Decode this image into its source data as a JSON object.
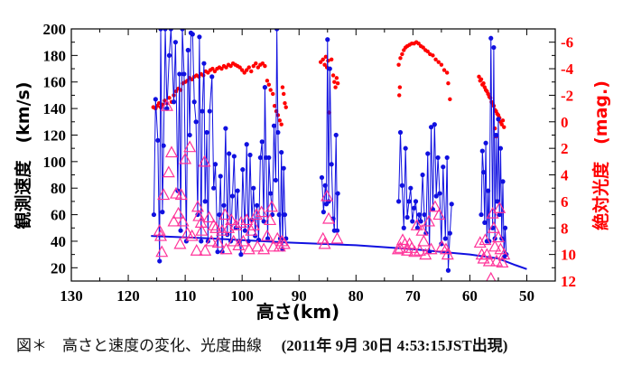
{
  "caption": {
    "main": "図＊　高さと速度の変化、光度曲線",
    "detail": "(2011年 9月 30日 4:53:15JST出現)"
  },
  "chart_data": {
    "type": "scatter",
    "xlabel": "高さ(km)",
    "ylabel": "観測速度　(km/s)",
    "y2label": "絶対光度　(mag.)",
    "xlim": [
      130,
      45
    ],
    "ylim": [
      10,
      200
    ],
    "y2lim": [
      -7,
      12
    ],
    "y2_inverted": true,
    "xticks": [
      130,
      120,
      110,
      100,
      90,
      80,
      70,
      60,
      50
    ],
    "yticks": [
      20,
      40,
      60,
      80,
      100,
      120,
      140,
      160,
      180,
      200
    ],
    "y2ticks": [
      -6,
      -4,
      -2,
      0,
      2,
      4,
      6,
      8,
      10,
      12
    ],
    "y2tick_labels": [
      "-6",
      "-4",
      "-2",
      "0",
      "2",
      "4",
      "6",
      "8",
      "10",
      "12"
    ],
    "grid": false,
    "colors": {
      "velocity": "#1010e0",
      "triangles": "#ff3399",
      "magnitude": "#ff0000",
      "y2axis": "#ff0000"
    },
    "velocity_segments": [
      [
        [
          115.5,
          60
        ],
        [
          115.2,
          147
        ],
        [
          114.8,
          116
        ],
        [
          114.5,
          25
        ],
        [
          114.3,
          200
        ],
        [
          114,
          62
        ],
        [
          113.8,
          112
        ],
        [
          113.5,
          200
        ],
        [
          113.2,
          140
        ],
        [
          112.8,
          180
        ],
        [
          112.5,
          200
        ],
        [
          112,
          145
        ],
        [
          111.7,
          190
        ],
        [
          111.3,
          78
        ],
        [
          111,
          166
        ],
        [
          110.8,
          48
        ],
        [
          110.5,
          200
        ],
        [
          110.2,
          166
        ],
        [
          109.8,
          40
        ],
        [
          109.5,
          184
        ],
        [
          109.2,
          120
        ],
        [
          109,
          197
        ],
        [
          108.7,
          196
        ],
        [
          108.4,
          145
        ],
        [
          108.1,
          130
        ],
        [
          107.8,
          60
        ],
        [
          107.5,
          194
        ],
        [
          107.2,
          40
        ],
        [
          107,
          138
        ],
        [
          106.7,
          174
        ],
        [
          106.5,
          70
        ],
        [
          106.2,
          122
        ],
        [
          106,
          40
        ],
        [
          105.7,
          138
        ],
        [
          105.3,
          164
        ],
        [
          105,
          80
        ],
        [
          104.7,
          98
        ],
        [
          104.3,
          32
        ],
        [
          104,
          60
        ],
        [
          103.8,
          89
        ],
        [
          103.5,
          32
        ],
        [
          103.2,
          67
        ],
        [
          102.9,
          125
        ],
        [
          102.6,
          45
        ],
        [
          102.3,
          106
        ],
        [
          102,
          40
        ],
        [
          101.7,
          74
        ],
        [
          101.4,
          104
        ],
        [
          101.1,
          50
        ],
        [
          100.8,
          78
        ],
        [
          100.5,
          40
        ],
        [
          100.2,
          30
        ],
        [
          99.9,
          94
        ],
        [
          99.5,
          48
        ],
        [
          99.2,
          113
        ],
        [
          98.9,
          40
        ],
        [
          98.6,
          105
        ],
        [
          98.3,
          56
        ],
        [
          98,
          80
        ],
        [
          97.7,
          44
        ],
        [
          97.4,
          67
        ],
        [
          97.1,
          41
        ],
        [
          96.8,
          103
        ],
        [
          96.5,
          115
        ],
        [
          96.2,
          55
        ],
        [
          96,
          156
        ],
        [
          95.8,
          103
        ],
        [
          95.5,
          42
        ],
        [
          95.3,
          103
        ],
        [
          95,
          76
        ],
        [
          94.7,
          60
        ],
        [
          94.4,
          127
        ],
        [
          94.1,
          86
        ],
        [
          93.9,
          200
        ],
        [
          93.7,
          122
        ],
        [
          93.5,
          60
        ],
        [
          93.3,
          42
        ],
        [
          93.1,
          107
        ],
        [
          92.9,
          34
        ],
        [
          92.7,
          95
        ],
        [
          92.5,
          60
        ],
        [
          92.3,
          42
        ]
      ],
      [
        [
          86,
          88
        ],
        [
          85.7,
          62
        ],
        [
          85.4,
          82
        ],
        [
          85.2,
          68
        ],
        [
          85,
          192
        ],
        [
          84.8,
          70
        ],
        [
          84.6,
          170
        ],
        [
          84.3,
          98
        ],
        [
          84,
          57
        ],
        [
          83.8,
          48
        ],
        [
          83.5,
          120
        ],
        [
          83.3,
          48
        ],
        [
          83.2,
          76
        ]
      ],
      [
        [
          72.5,
          70
        ],
        [
          72.2,
          122
        ],
        [
          71.9,
          82
        ],
        [
          71.6,
          50
        ],
        [
          71.3,
          110
        ],
        [
          71,
          58
        ],
        [
          70.7,
          70
        ],
        [
          70.4,
          80
        ],
        [
          70.1,
          55
        ],
        [
          69.8,
          65
        ],
        [
          69.5,
          70
        ],
        [
          69.2,
          50
        ],
        [
          68.9,
          60
        ],
        [
          68.6,
          55
        ],
        [
          68.3,
          90
        ],
        [
          68,
          60
        ],
        [
          67.7,
          46
        ],
        [
          67.4,
          106
        ],
        [
          67.1,
          32
        ],
        [
          66.8,
          126
        ],
        [
          66.5,
          64
        ],
        [
          66.2,
          128
        ],
        [
          65.9,
          74
        ],
        [
          65.6,
          103
        ],
        [
          65.3,
          76
        ],
        [
          65,
          38
        ],
        [
          64.7,
          96
        ],
        [
          64.3,
          42
        ],
        [
          64,
          103
        ],
        [
          63.8,
          18
        ],
        [
          63.5,
          46
        ],
        [
          63.2,
          68
        ]
      ],
      [
        [
          58,
          60
        ],
        [
          57.8,
          108
        ],
        [
          57.6,
          92
        ],
        [
          57.4,
          54
        ],
        [
          57.2,
          114
        ],
        [
          57,
          40
        ],
        [
          56.8,
          78
        ],
        [
          56.6,
          40
        ],
        [
          56.3,
          193
        ],
        [
          56,
          50
        ],
        [
          55.8,
          186
        ],
        [
          55.6,
          42
        ],
        [
          55.4,
          120
        ],
        [
          55.2,
          70
        ],
        [
          55,
          132
        ],
        [
          54.8,
          60
        ],
        [
          54.6,
          110
        ],
        [
          54.4,
          42
        ],
        [
          54.2,
          85
        ],
        [
          54,
          28
        ],
        [
          53.8,
          50
        ],
        [
          53.6,
          30
        ]
      ]
    ],
    "velocity_fit": [
      [
        116,
        44
      ],
      [
        105,
        42
      ],
      [
        92,
        39
      ],
      [
        80,
        37
      ],
      [
        70,
        34
      ],
      [
        60,
        30
      ],
      [
        55,
        27
      ],
      [
        52,
        22
      ],
      [
        50,
        19
      ]
    ],
    "triangle_points": [
      [
        114.5,
        48
      ],
      [
        114.3,
        44
      ],
      [
        114.1,
        32
      ],
      [
        113.8,
        75
      ],
      [
        113.2,
        142
      ],
      [
        112.9,
        92
      ],
      [
        112.4,
        107
      ],
      [
        112,
        55
      ],
      [
        111.6,
        76
      ],
      [
        111.2,
        61
      ],
      [
        110.7,
        75
      ],
      [
        110.9,
        38
      ],
      [
        110.4,
        55
      ],
      [
        110,
        102
      ],
      [
        109.6,
        46
      ],
      [
        109.2,
        111
      ],
      [
        108.8,
        44
      ],
      [
        108,
        33
      ],
      [
        107.8,
        66
      ],
      [
        107.6,
        59
      ],
      [
        107.2,
        54
      ],
      [
        107.1,
        48
      ],
      [
        106.6,
        100
      ],
      [
        106.5,
        33
      ],
      [
        105.8,
        58
      ],
      [
        105.4,
        40
      ],
      [
        105,
        52
      ],
      [
        104.6,
        50
      ],
      [
        104.2,
        39
      ],
      [
        103.5,
        48
      ],
      [
        103,
        60
      ],
      [
        102.8,
        34
      ],
      [
        102.4,
        50
      ],
      [
        101.9,
        56
      ],
      [
        101.5,
        40
      ],
      [
        101.1,
        52
      ],
      [
        100.6,
        37
      ],
      [
        100.2,
        54
      ],
      [
        99.8,
        40
      ],
      [
        99.2,
        56
      ],
      [
        98.8,
        34
      ],
      [
        98.4,
        48
      ],
      [
        98,
        52
      ],
      [
        97.5,
        60
      ],
      [
        97.3,
        36
      ],
      [
        96.6,
        62
      ],
      [
        96.2,
        34
      ],
      [
        95.6,
        44
      ],
      [
        95.1,
        56
      ],
      [
        94.8,
        66
      ],
      [
        94.5,
        36
      ],
      [
        93.8,
        42
      ],
      [
        93.4,
        36
      ],
      [
        93,
        40
      ],
      [
        92.6,
        38
      ],
      [
        85.8,
        42
      ],
      [
        85.5,
        38
      ],
      [
        85.1,
        74
      ],
      [
        84.8,
        57
      ],
      [
        83.3,
        42
      ],
      [
        72.6,
        34
      ],
      [
        72.2,
        35
      ],
      [
        71.8,
        41
      ],
      [
        71.4,
        38
      ],
      [
        71,
        33
      ],
      [
        70.6,
        38
      ],
      [
        70.2,
        35
      ],
      [
        69.7,
        32
      ],
      [
        69.3,
        52
      ],
      [
        68.8,
        33
      ],
      [
        68.4,
        48
      ],
      [
        68.1,
        40
      ],
      [
        67.8,
        30
      ],
      [
        67.2,
        55
      ],
      [
        66.8,
        34
      ],
      [
        66.1,
        66
      ],
      [
        65.4,
        60
      ],
      [
        64.9,
        36
      ],
      [
        64.2,
        34
      ],
      [
        63.9,
        30
      ],
      [
        58.2,
        39
      ],
      [
        57.9,
        30
      ],
      [
        57.6,
        27
      ],
      [
        57.3,
        41
      ],
      [
        57,
        30
      ],
      [
        56.6,
        25
      ],
      [
        56.3,
        12
      ],
      [
        56,
        61
      ],
      [
        55.8,
        50
      ],
      [
        55.6,
        36
      ],
      [
        55.3,
        25
      ],
      [
        55,
        43
      ],
      [
        54.8,
        65
      ],
      [
        54.6,
        34
      ],
      [
        54.3,
        24
      ],
      [
        54,
        30
      ]
    ],
    "magnitude_points": [
      [
        115.6,
        -1.1
      ],
      [
        115.2,
        -1.0
      ],
      [
        114.9,
        -1.2
      ],
      [
        114.6,
        -1.4
      ],
      [
        114.3,
        -1.1
      ],
      [
        114,
        -1.3
      ],
      [
        113.6,
        -1.6
      ],
      [
        113.2,
        -1.4
      ],
      [
        112.8,
        -1.8
      ],
      [
        112.4,
        -1.5
      ],
      [
        112,
        -2.0
      ],
      [
        111.6,
        -2.3
      ],
      [
        111.2,
        -2.5
      ],
      [
        110.8,
        -2.4
      ],
      [
        110.4,
        -2.9
      ],
      [
        110,
        -3.0
      ],
      [
        109.6,
        -3.1
      ],
      [
        109.2,
        -3.3
      ],
      [
        108.8,
        -3.2
      ],
      [
        108.4,
        -3.4
      ],
      [
        108,
        -3.5
      ],
      [
        107.6,
        -3.4
      ],
      [
        107.2,
        -3.6
      ],
      [
        106.8,
        -3.5
      ],
      [
        106.4,
        -3.8
      ],
      [
        106,
        -3.7
      ],
      [
        105.6,
        -3.9
      ],
      [
        105.2,
        -4.0
      ],
      [
        104.8,
        -3.8
      ],
      [
        104.4,
        -4.0
      ],
      [
        104,
        -4.1
      ],
      [
        103.6,
        -4.0
      ],
      [
        103.2,
        -4.2
      ],
      [
        102.8,
        -4.1
      ],
      [
        102.4,
        -4.3
      ],
      [
        102,
        -4.2
      ],
      [
        101.6,
        -4.4
      ],
      [
        101.2,
        -4.3
      ],
      [
        100.8,
        -4.2
      ],
      [
        100.4,
        -4.1
      ],
      [
        100,
        -3.9
      ],
      [
        99.6,
        -3.7
      ],
      [
        99.2,
        -3.9
      ],
      [
        98.8,
        -4.1
      ],
      [
        98.4,
        -3.8
      ],
      [
        98,
        -4.2
      ],
      [
        97.6,
        -4.4
      ],
      [
        97.2,
        -4.1
      ],
      [
        96.8,
        -4.3
      ],
      [
        96.4,
        -4.4
      ],
      [
        96,
        -4.2
      ],
      [
        95.6,
        -3.1
      ],
      [
        95.3,
        -2.8
      ],
      [
        95,
        -2.4
      ],
      [
        94.6,
        -2.1
      ],
      [
        94.3,
        -1.2
      ],
      [
        94,
        -0.8
      ],
      [
        93.7,
        -0.5
      ],
      [
        93.4,
        -0.1
      ],
      [
        93.1,
        0.2
      ],
      [
        92.9,
        -2.6
      ],
      [
        92.7,
        -2.1
      ],
      [
        92.5,
        -1.4
      ],
      [
        92.3,
        -1.1
      ],
      [
        86.2,
        -4.5
      ],
      [
        85.8,
        -4.7
      ],
      [
        85.5,
        -4.3
      ],
      [
        85.3,
        -4.9
      ],
      [
        85.1,
        -4.1
      ],
      [
        84.9,
        -4.6
      ],
      [
        84.7,
        -0.7
      ],
      [
        84.3,
        -4.7
      ],
      [
        84,
        -3.5
      ],
      [
        83.8,
        -3.0
      ],
      [
        83.6,
        -2.6
      ],
      [
        83.4,
        -3.3
      ],
      [
        83.2,
        -2.9
      ],
      [
        72.5,
        -4.3
      ],
      [
        72.4,
        -2.0
      ],
      [
        72.3,
        -2.6
      ],
      [
        72.2,
        -4.8
      ],
      [
        71.9,
        -5.1
      ],
      [
        71.6,
        -5.4
      ],
      [
        71.3,
        -5.6
      ],
      [
        71,
        -5.7
      ],
      [
        70.6,
        -5.8
      ],
      [
        70.2,
        -5.9
      ],
      [
        69.8,
        -5.9
      ],
      [
        69.4,
        -6.0
      ],
      [
        69,
        -5.9
      ],
      [
        68.6,
        -5.7
      ],
      [
        68.2,
        -5.6
      ],
      [
        67.8,
        -5.4
      ],
      [
        67.4,
        -5.3
      ],
      [
        67,
        -5.1
      ],
      [
        66.5,
        -5.0
      ],
      [
        66,
        -4.7
      ],
      [
        65.5,
        -4.5
      ],
      [
        65,
        -4.3
      ],
      [
        64.5,
        -3.9
      ],
      [
        64,
        -3.7
      ],
      [
        63.8,
        -2.9
      ],
      [
        63.5,
        -1.7
      ],
      [
        58.4,
        -3.4
      ],
      [
        58.2,
        -3.1
      ],
      [
        58,
        -3.2
      ],
      [
        57.8,
        -2.8
      ],
      [
        57.6,
        -2.9
      ],
      [
        57.4,
        -2.6
      ],
      [
        57.2,
        -2.4
      ],
      [
        57,
        -2.3
      ],
      [
        56.8,
        -2.1
      ],
      [
        56.6,
        -1.9
      ],
      [
        56.4,
        -1.8
      ],
      [
        56.2,
        -1.5
      ],
      [
        56,
        -1.4
      ],
      [
        55.8,
        -1.2
      ],
      [
        55.6,
        -0.9
      ],
      [
        55.4,
        -0.8
      ],
      [
        55.2,
        -0.6
      ],
      [
        55,
        -0.5
      ],
      [
        54.8,
        -0.3
      ],
      [
        54.6,
        0.0
      ],
      [
        54.4,
        0.2
      ],
      [
        54.2,
        -0.1
      ],
      [
        54,
        0.4
      ],
      [
        55.6,
        0.5
      ],
      [
        55.4,
        1.1
      ]
    ]
  }
}
